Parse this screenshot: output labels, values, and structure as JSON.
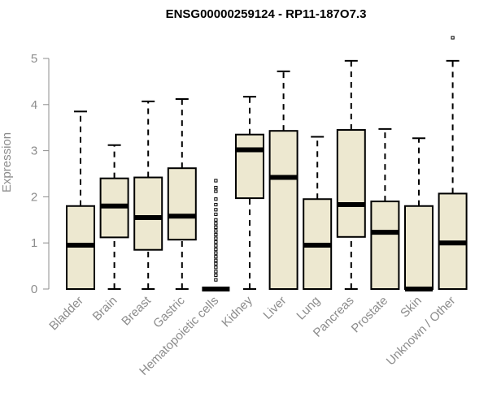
{
  "chart_data": {
    "type": "box",
    "title": "ENSG00000259124 - RP11-187O7.3",
    "xlabel": "",
    "ylabel": "Expression",
    "ylim": [
      0,
      5.5
    ],
    "yticks": [
      "0",
      "1",
      "2",
      "3",
      "4",
      "5"
    ],
    "grid": false,
    "legend": "none",
    "box_fill": "#ede8d0",
    "box_stroke": "#000000",
    "axis_color": "#8c8c8c",
    "categories": [
      "Bladder",
      "Brain",
      "Breast",
      "Gastric",
      "Hematopoietic cells",
      "Kidney",
      "Liver",
      "Lung",
      "Pancreas",
      "Prostate",
      "Skin",
      "Unknown / Other"
    ],
    "boxes": [
      {
        "min": 0,
        "q1": 0,
        "median": 0.95,
        "q3": 1.8,
        "max": 3.85,
        "outliers": []
      },
      {
        "min": 0,
        "q1": 1.12,
        "median": 1.8,
        "q3": 2.4,
        "max": 3.12,
        "outliers": []
      },
      {
        "min": 0,
        "q1": 0.85,
        "median": 1.55,
        "q3": 2.42,
        "max": 4.07,
        "outliers": []
      },
      {
        "min": 0,
        "q1": 1.07,
        "median": 1.58,
        "q3": 2.62,
        "max": 4.12,
        "outliers": []
      },
      {
        "min": 0,
        "q1": 0,
        "median": 0,
        "q3": 0,
        "max": 0,
        "outliers": [
          0.2,
          0.3,
          0.38,
          0.47,
          0.55,
          0.62,
          0.7,
          0.78,
          0.86,
          0.94,
          1.02,
          1.1,
          1.18,
          1.26,
          1.34,
          1.42,
          1.5,
          1.62,
          1.72,
          1.83,
          1.95,
          2.12,
          2.2,
          2.35
        ]
      },
      {
        "min": 0,
        "q1": 1.97,
        "median": 3.02,
        "q3": 3.35,
        "max": 4.17,
        "outliers": []
      },
      {
        "min": 0,
        "q1": 0,
        "median": 2.42,
        "q3": 3.43,
        "max": 4.72,
        "outliers": []
      },
      {
        "min": 0,
        "q1": 0,
        "median": 0.95,
        "q3": 1.95,
        "max": 3.3,
        "outliers": []
      },
      {
        "min": 0,
        "q1": 1.13,
        "median": 1.83,
        "q3": 3.45,
        "max": 4.95,
        "outliers": []
      },
      {
        "min": 0,
        "q1": 0,
        "median": 1.23,
        "q3": 1.9,
        "max": 3.47,
        "outliers": []
      },
      {
        "min": 0,
        "q1": 0,
        "median": 0,
        "q3": 1.8,
        "max": 3.27,
        "outliers": []
      },
      {
        "min": 0,
        "q1": 0,
        "median": 1.0,
        "q3": 2.07,
        "max": 4.95,
        "outliers": [
          5.45
        ]
      }
    ]
  }
}
